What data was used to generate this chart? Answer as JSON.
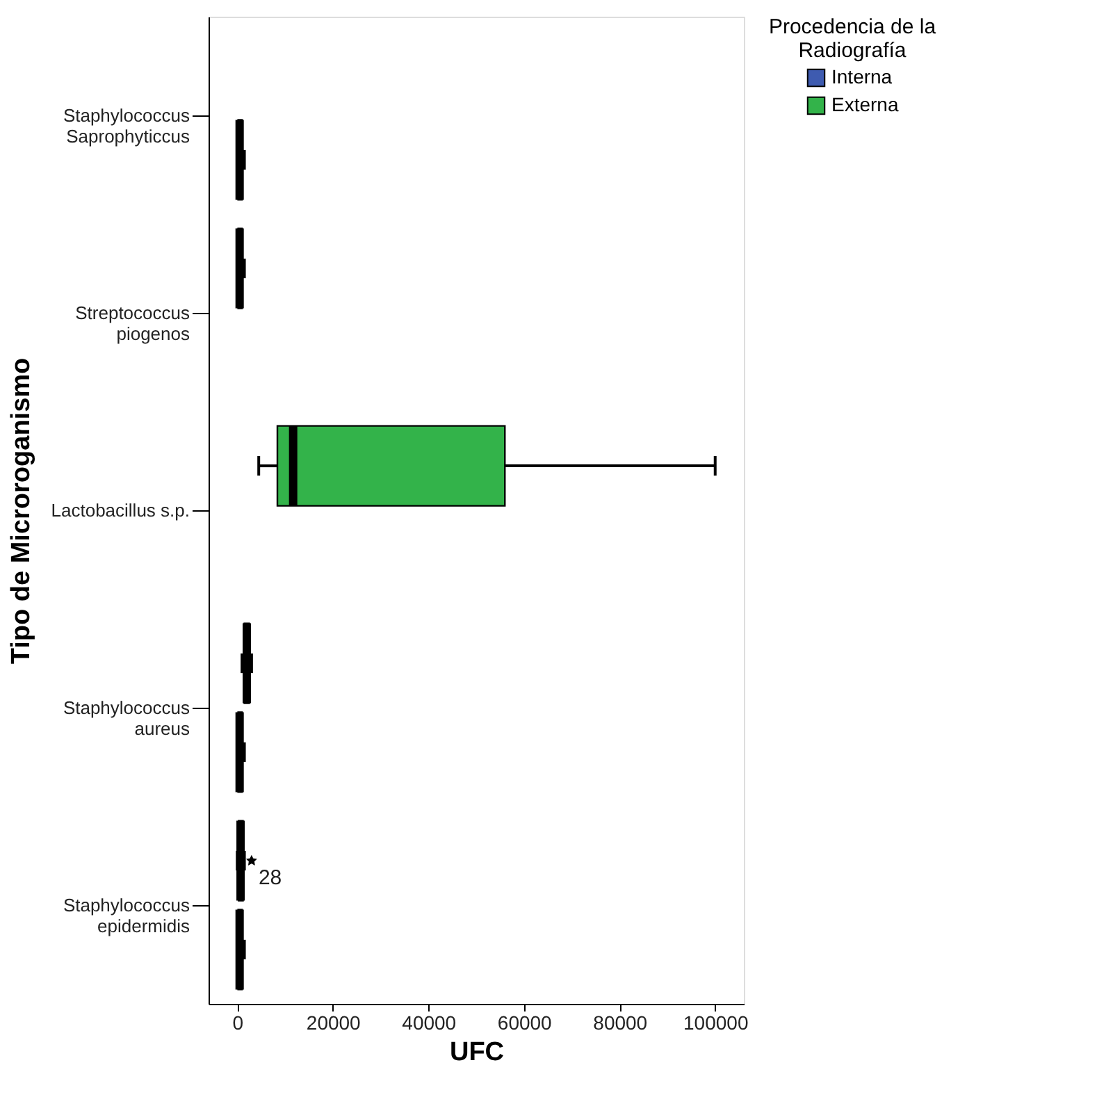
{
  "chart_data": {
    "type": "box",
    "orientation": "horizontal",
    "xlabel": "UFC",
    "ylabel": "Tipo de Microroganismo",
    "legend_title": "Procedencia de la Radiografía",
    "legend": "top right",
    "grid": false,
    "categories": [
      "Staphylococcus Saprophyticcus",
      "Streptococcus piogenos",
      "Lactobacillus s.p.",
      "Staphylococcus aureus",
      "Staphylococcus epidermidis"
    ],
    "xlim": [
      -6000,
      106000
    ],
    "xticks": [
      0,
      20000,
      40000,
      60000,
      80000,
      100000
    ],
    "series": [
      {
        "name": "Externa",
        "color": "#33b34a",
        "boxes": [
          null,
          {
            "low": 0,
            "q1": 200,
            "median": 500,
            "q3": 1000,
            "high": 1500
          },
          {
            "low": 4500,
            "q1": 8400,
            "median": 11700,
            "q3": 56000,
            "high": 100000
          },
          {
            "low": 1000,
            "q1": 1500,
            "median": 2000,
            "q3": 2500,
            "high": 3000
          },
          {
            "low": 0,
            "q1": 300,
            "median": 700,
            "q3": 1200,
            "high": 1500,
            "outliers": [
              3000
            ]
          }
        ]
      },
      {
        "name": "Interna",
        "color": "#3e5bb0",
        "boxes": [
          {
            "low": 0,
            "q1": 200,
            "median": 500,
            "q3": 1000,
            "high": 1500
          },
          null,
          null,
          {
            "low": 0,
            "q1": 200,
            "median": 500,
            "q3": 1000,
            "high": 1500
          },
          {
            "low": 0,
            "q1": 200,
            "median": 500,
            "q3": 1000,
            "high": 1500
          }
        ]
      }
    ],
    "annotations": [
      "28"
    ]
  }
}
